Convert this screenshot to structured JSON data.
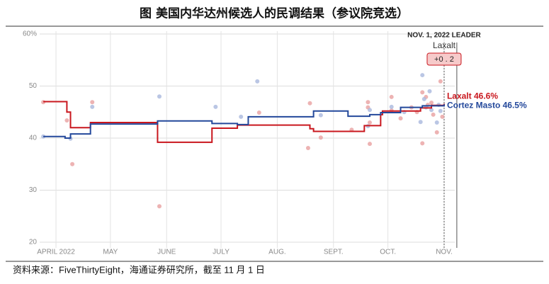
{
  "chart_data": {
    "type": "step-line",
    "title": "图  美国内华达州候选人的民调结果（参议院竞选）",
    "source": "资料来源：FiveThirtyEight，海通证券研究所，截至 11 月 1 日",
    "xlim": [
      -9,
      223
    ],
    "xticks": [
      {
        "value": 0,
        "label": "APRIL 2022"
      },
      {
        "value": 30,
        "label": "MAY"
      },
      {
        "value": 61,
        "label": "JUNE"
      },
      {
        "value": 91,
        "label": "JULY"
      },
      {
        "value": 122,
        "label": "AUG."
      },
      {
        "value": 153,
        "label": "SEPT."
      },
      {
        "value": 183,
        "label": "OCT."
      },
      {
        "value": 214,
        "label": "NOV."
      }
    ],
    "ylim": [
      20,
      60
    ],
    "yticks": [
      {
        "value": 60,
        "label": "60%"
      },
      50,
      40,
      30,
      20
    ],
    "grid": true,
    "annotation": {
      "x": 214,
      "title": "NOV. 1, 2022 LEADER",
      "leader": "Laxalt",
      "margin": "+0 . 2"
    },
    "election_day": 221,
    "series": [
      {
        "name": "Laxalt",
        "label": "Laxalt 46.6%",
        "color": "#c9171e",
        "dot_color": "#e8a0a0",
        "x": [
          -7,
          6,
          8,
          19,
          56,
          86,
          100,
          140,
          142,
          170,
          179,
          180,
          201,
          207,
          214
        ],
        "values": [
          47,
          45,
          42,
          43,
          39.2,
          41.9,
          42.5,
          41.8,
          41.3,
          42.4,
          44.5,
          45.2,
          45.8,
          46.3,
          46.6
        ],
        "polls_x": [
          -7,
          6,
          9,
          20,
          57,
          112,
          139,
          140,
          146,
          163,
          172,
          172,
          173,
          173,
          185,
          185,
          190,
          196,
          199,
          202,
          202,
          204,
          205,
          207,
          208,
          210,
          212,
          213
        ],
        "polls": [
          46.9,
          43.4,
          35.0,
          46.9,
          26.9,
          44.9,
          38.1,
          46.7,
          40.1,
          41.6,
          46.9,
          45.9,
          38.9,
          43.0,
          47.9,
          45.3,
          43.8,
          45.9,
          45.0,
          48.8,
          39.0,
          47.9,
          46.4,
          46.8,
          44.5,
          41.1,
          50.9,
          44.1
        ]
      },
      {
        "name": "Cortez Masto",
        "label": "Cortez Masto 46.5%",
        "color": "#23489b",
        "dot_color": "#a9b8dd",
        "x": [
          -7,
          5,
          8,
          19,
          56,
          86,
          100,
          106,
          142,
          161,
          173,
          179,
          190,
          202,
          214
        ],
        "values": [
          40.3,
          40.0,
          40.8,
          42.7,
          43.3,
          42.8,
          42.6,
          44.1,
          45.2,
          44.2,
          44.5,
          44.9,
          45.9,
          46.2,
          46.5
        ],
        "polls_x": [
          -7,
          8,
          20,
          57,
          88,
          102,
          111,
          146,
          172,
          173,
          185,
          192,
          201,
          202,
          203,
          204,
          206,
          207,
          210,
          211,
          212
        ],
        "polls": [
          40.3,
          39.9,
          46.0,
          48.0,
          46.0,
          44.1,
          50.9,
          44.4,
          42.3,
          45.4,
          46.0,
          45.0,
          43.1,
          52.1,
          47.5,
          45.9,
          49.0,
          45.4,
          43.0,
          46.4,
          45.2
        ]
      }
    ]
  }
}
